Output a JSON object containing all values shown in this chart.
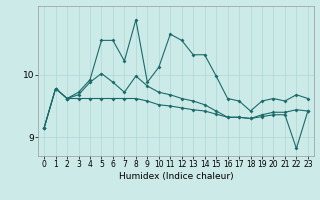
{
  "xlabel": "Humidex (Indice chaleur)",
  "bg_color": "#cceae8",
  "line_color": "#1a6b6a",
  "grid_color": "#aed8d5",
  "x": [
    0,
    1,
    2,
    3,
    4,
    5,
    6,
    7,
    8,
    9,
    10,
    11,
    12,
    13,
    14,
    15,
    16,
    17,
    18,
    19,
    20,
    21,
    22,
    23
  ],
  "line1": [
    9.15,
    9.78,
    9.62,
    9.72,
    9.92,
    10.55,
    10.55,
    10.22,
    10.88,
    9.88,
    10.12,
    10.65,
    10.55,
    10.32,
    10.32,
    9.98,
    9.62,
    9.58,
    9.42,
    9.58,
    9.62,
    9.58,
    9.68,
    9.62
  ],
  "line2": [
    9.15,
    9.78,
    9.62,
    9.68,
    9.88,
    10.02,
    9.88,
    9.72,
    9.98,
    9.82,
    9.72,
    9.68,
    9.62,
    9.58,
    9.52,
    9.42,
    9.32,
    9.32,
    9.3,
    9.36,
    9.4,
    9.4,
    9.44,
    9.42
  ],
  "line3": [
    9.15,
    9.78,
    9.62,
    9.62,
    9.62,
    9.62,
    9.62,
    9.62,
    9.62,
    9.58,
    9.52,
    9.5,
    9.47,
    9.44,
    9.42,
    9.37,
    9.32,
    9.32,
    9.3,
    9.33,
    9.36,
    9.36,
    8.82,
    9.42
  ],
  "ylim": [
    8.7,
    11.1
  ],
  "yticks": [
    9,
    10
  ],
  "xlim": [
    -0.5,
    23.5
  ],
  "xticks": [
    0,
    1,
    2,
    3,
    4,
    5,
    6,
    7,
    8,
    9,
    10,
    11,
    12,
    13,
    14,
    15,
    16,
    17,
    18,
    19,
    20,
    21,
    22,
    23
  ]
}
